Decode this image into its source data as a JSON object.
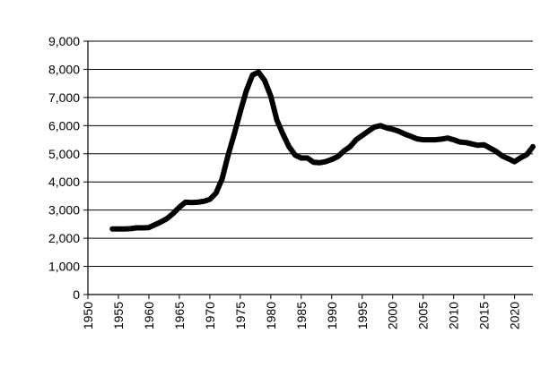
{
  "chart_data": {
    "type": "line",
    "title": "",
    "xlabel": "",
    "ylabel": "",
    "xlim": [
      1950,
      2023
    ],
    "ylim": [
      0,
      9000
    ],
    "x_ticks": [
      1950,
      1955,
      1960,
      1965,
      1970,
      1975,
      1980,
      1985,
      1990,
      1995,
      2000,
      2005,
      2010,
      2015,
      2020
    ],
    "y_ticks": [
      0,
      1000,
      2000,
      3000,
      4000,
      5000,
      6000,
      7000,
      8000,
      9000
    ],
    "x_tick_labels": [
      "1950",
      "1955",
      "1960",
      "1965",
      "1970",
      "1975",
      "1980",
      "1985",
      "1990",
      "1995",
      "2000",
      "2005",
      "2010",
      "2015",
      "2020"
    ],
    "y_tick_labels": [
      "0",
      "1,000",
      "2,000",
      "3,000",
      "4,000",
      "5,000",
      "6,000",
      "7,000",
      "8,000",
      "9,000"
    ],
    "grid": "horizontal",
    "legend": "none",
    "series": [
      {
        "color": "#000000",
        "x": [
          1954,
          1955,
          1956,
          1957,
          1958,
          1959,
          1960,
          1961,
          1962,
          1963,
          1964,
          1965,
          1966,
          1967,
          1968,
          1969,
          1970,
          1971,
          1972,
          1973,
          1974,
          1975,
          1976,
          1977,
          1978,
          1979,
          1980,
          1981,
          1982,
          1983,
          1984,
          1985,
          1986,
          1987,
          1988,
          1989,
          1990,
          1991,
          1992,
          1993,
          1994,
          1995,
          1996,
          1997,
          1998,
          1999,
          2000,
          2001,
          2002,
          2003,
          2004,
          2005,
          2006,
          2007,
          2008,
          2009,
          2010,
          2011,
          2012,
          2013,
          2014,
          2015,
          2016,
          2017,
          2018,
          2019,
          2020,
          2021,
          2022,
          2023
        ],
        "values": [
          2330,
          2330,
          2330,
          2340,
          2370,
          2370,
          2380,
          2480,
          2580,
          2700,
          2880,
          3100,
          3280,
          3270,
          3280,
          3310,
          3380,
          3600,
          4100,
          4950,
          5700,
          6500,
          7250,
          7800,
          7900,
          7600,
          7050,
          6200,
          5700,
          5250,
          4950,
          4850,
          4850,
          4700,
          4680,
          4720,
          4800,
          4900,
          5100,
          5250,
          5500,
          5650,
          5800,
          5950,
          6000,
          5920,
          5870,
          5800,
          5700,
          5620,
          5530,
          5500,
          5500,
          5500,
          5520,
          5560,
          5500,
          5420,
          5400,
          5350,
          5300,
          5320,
          5200,
          5080,
          4920,
          4820,
          4720,
          4860,
          4970,
          5250
        ]
      }
    ]
  }
}
